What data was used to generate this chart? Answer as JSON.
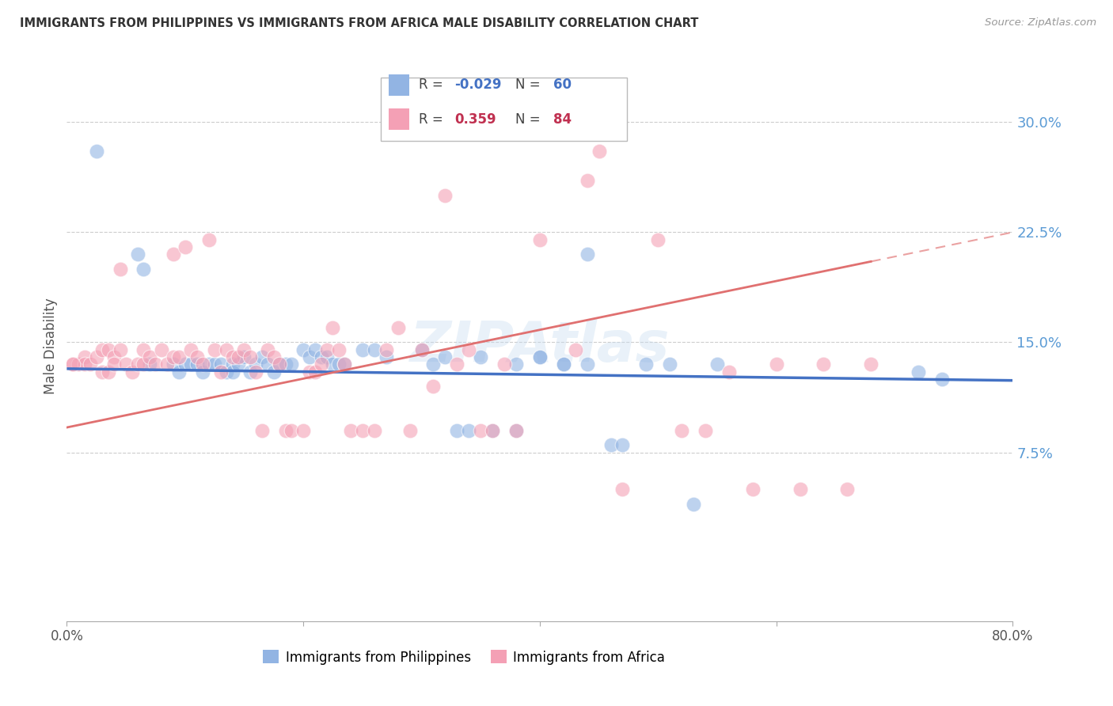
{
  "title": "IMMIGRANTS FROM PHILIPPINES VS IMMIGRANTS FROM AFRICA MALE DISABILITY CORRELATION CHART",
  "source": "Source: ZipAtlas.com",
  "ylabel": "Male Disability",
  "series1_label": "Immigrants from Philippines",
  "series1_color": "#92b4e3",
  "series1_R": -0.029,
  "series1_N": 60,
  "series2_label": "Immigrants from Africa",
  "series2_color": "#f4a0b5",
  "series2_R": 0.359,
  "series2_N": 84,
  "xlim": [
    0.0,
    0.8
  ],
  "ylim": [
    -0.04,
    0.335
  ],
  "yticks": [
    0.075,
    0.15,
    0.225,
    0.3
  ],
  "ytick_labels": [
    "7.5%",
    "15.0%",
    "22.5%",
    "30.0%"
  ],
  "watermark": "ZIPAtlas",
  "background_color": "#ffffff",
  "axis_color": "#5b9bd5",
  "grid_color": "#cccccc",
  "line1_color": "#4472c4",
  "line2_color": "#e07070",
  "line1_x0": 0.0,
  "line1_y0": 0.132,
  "line1_x1": 0.8,
  "line1_y1": 0.124,
  "line2_x0": 0.0,
  "line2_y0": 0.092,
  "line2_x1": 0.68,
  "line2_y1": 0.205,
  "series1_points_x": [
    0.025,
    0.06,
    0.065,
    0.07,
    0.09,
    0.095,
    0.1,
    0.105,
    0.11,
    0.115,
    0.12,
    0.125,
    0.13,
    0.135,
    0.14,
    0.14,
    0.145,
    0.15,
    0.155,
    0.16,
    0.165,
    0.17,
    0.175,
    0.18,
    0.185,
    0.19,
    0.2,
    0.205,
    0.21,
    0.215,
    0.22,
    0.225,
    0.23,
    0.235,
    0.25,
    0.26,
    0.27,
    0.3,
    0.31,
    0.32,
    0.33,
    0.34,
    0.35,
    0.36,
    0.38,
    0.4,
    0.42,
    0.44,
    0.46,
    0.47,
    0.49,
    0.51,
    0.53,
    0.55,
    0.38,
    0.4,
    0.42,
    0.44,
    0.72,
    0.74
  ],
  "series1_points_y": [
    0.28,
    0.21,
    0.2,
    0.135,
    0.135,
    0.13,
    0.135,
    0.135,
    0.135,
    0.13,
    0.135,
    0.135,
    0.135,
    0.13,
    0.135,
    0.13,
    0.135,
    0.14,
    0.13,
    0.135,
    0.14,
    0.135,
    0.13,
    0.135,
    0.135,
    0.135,
    0.145,
    0.14,
    0.145,
    0.14,
    0.14,
    0.135,
    0.135,
    0.135,
    0.145,
    0.145,
    0.14,
    0.145,
    0.135,
    0.14,
    0.09,
    0.09,
    0.14,
    0.09,
    0.09,
    0.14,
    0.135,
    0.21,
    0.08,
    0.08,
    0.135,
    0.135,
    0.04,
    0.135,
    0.135,
    0.14,
    0.135,
    0.135,
    0.13,
    0.125
  ],
  "series2_points_x": [
    0.005,
    0.01,
    0.015,
    0.015,
    0.02,
    0.025,
    0.03,
    0.03,
    0.035,
    0.035,
    0.04,
    0.04,
    0.045,
    0.045,
    0.05,
    0.055,
    0.06,
    0.065,
    0.065,
    0.07,
    0.075,
    0.08,
    0.085,
    0.09,
    0.09,
    0.095,
    0.1,
    0.105,
    0.11,
    0.115,
    0.12,
    0.125,
    0.13,
    0.135,
    0.14,
    0.145,
    0.15,
    0.155,
    0.16,
    0.165,
    0.17,
    0.175,
    0.18,
    0.185,
    0.19,
    0.2,
    0.205,
    0.21,
    0.215,
    0.22,
    0.225,
    0.23,
    0.235,
    0.24,
    0.25,
    0.26,
    0.27,
    0.28,
    0.29,
    0.3,
    0.31,
    0.32,
    0.33,
    0.34,
    0.35,
    0.36,
    0.37,
    0.38,
    0.4,
    0.43,
    0.44,
    0.45,
    0.47,
    0.5,
    0.52,
    0.54,
    0.56,
    0.58,
    0.6,
    0.62,
    0.64,
    0.66,
    0.68,
    0.005
  ],
  "series2_points_y": [
    0.135,
    0.135,
    0.14,
    0.135,
    0.135,
    0.14,
    0.145,
    0.13,
    0.145,
    0.13,
    0.14,
    0.135,
    0.2,
    0.145,
    0.135,
    0.13,
    0.135,
    0.135,
    0.145,
    0.14,
    0.135,
    0.145,
    0.135,
    0.14,
    0.21,
    0.14,
    0.215,
    0.145,
    0.14,
    0.135,
    0.22,
    0.145,
    0.13,
    0.145,
    0.14,
    0.14,
    0.145,
    0.14,
    0.13,
    0.09,
    0.145,
    0.14,
    0.135,
    0.09,
    0.09,
    0.09,
    0.13,
    0.13,
    0.135,
    0.145,
    0.16,
    0.145,
    0.135,
    0.09,
    0.09,
    0.09,
    0.145,
    0.16,
    0.09,
    0.145,
    0.12,
    0.25,
    0.135,
    0.145,
    0.09,
    0.09,
    0.135,
    0.09,
    0.22,
    0.145,
    0.26,
    0.28,
    0.05,
    0.22,
    0.09,
    0.09,
    0.13,
    0.05,
    0.135,
    0.05,
    0.135,
    0.05,
    0.135,
    0.135
  ]
}
